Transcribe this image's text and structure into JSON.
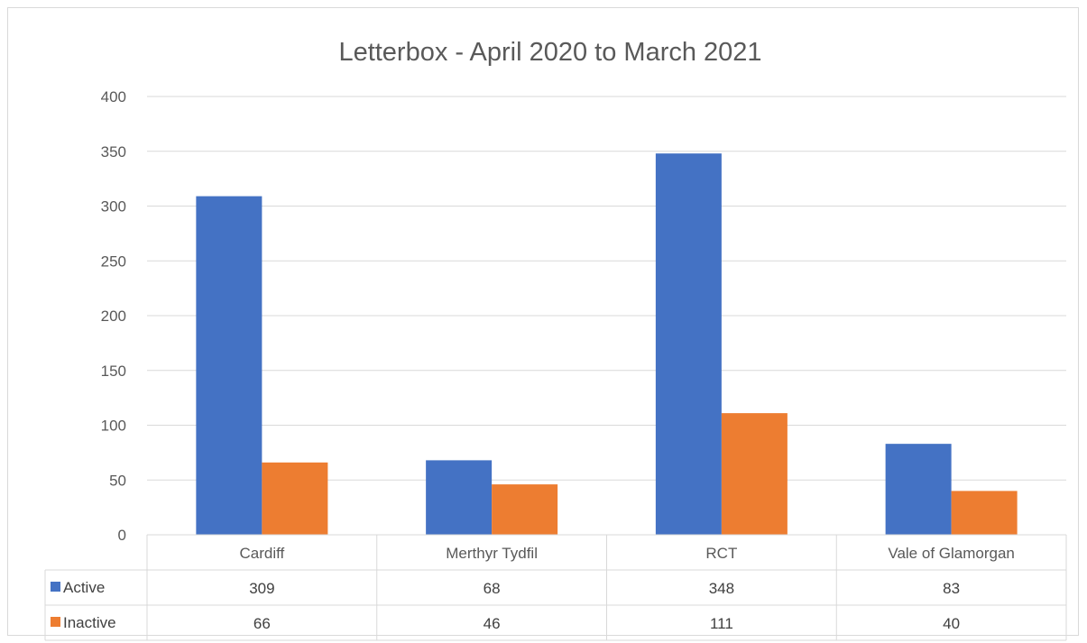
{
  "chart_data": {
    "type": "bar",
    "title": "Letterbox - April 2020 to March 2021",
    "categories": [
      "Cardiff",
      "Merthyr Tydfil",
      "RCT",
      "Vale of Glamorgan"
    ],
    "series": [
      {
        "name": "Active",
        "color": "#4472c4",
        "values": [
          309,
          68,
          348,
          83
        ]
      },
      {
        "name": "Inactive",
        "color": "#ed7d31",
        "values": [
          66,
          46,
          111,
          40
        ]
      }
    ],
    "ylim": [
      0,
      400
    ],
    "yticks": [
      0,
      50,
      100,
      150,
      200,
      250,
      300,
      350,
      400
    ],
    "grid": true,
    "data_table": true,
    "colors": {
      "gridline": "#d9d9d9",
      "text": "#595959"
    }
  }
}
